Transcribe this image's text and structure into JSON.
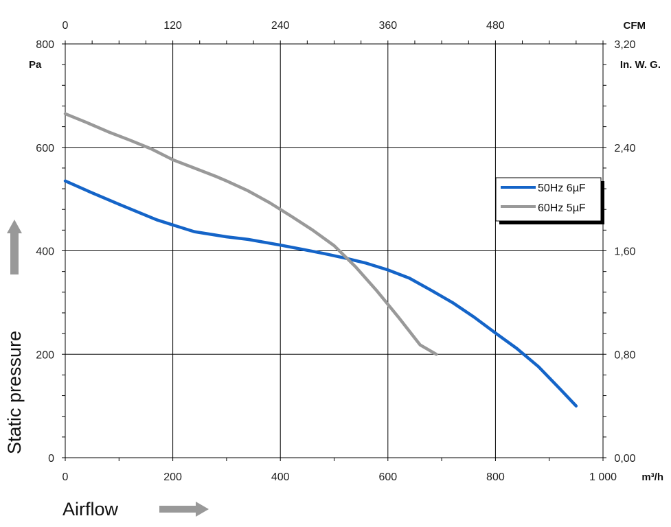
{
  "chart_data": {
    "type": "line",
    "xlabel": "Airflow",
    "ylabel": "Static pressure",
    "x_unit": "m³/h",
    "y_unit": "Pa",
    "x_top_unit": "CFM",
    "y_right_unit": "In. W. G.",
    "xlim": [
      0,
      1000
    ],
    "ylim": [
      0,
      800
    ],
    "x_ticks": [
      0,
      200,
      400,
      600,
      800,
      1000
    ],
    "x_tick_labels": [
      "0",
      "200",
      "400",
      "600",
      "800",
      "1 000"
    ],
    "y_ticks": [
      0,
      200,
      400,
      600,
      800
    ],
    "y_tick_labels": [
      "0",
      "200",
      "400",
      "600",
      "800"
    ],
    "x_top_tick_values": [
      0,
      120,
      240,
      360,
      480
    ],
    "x_top_tick_labels": [
      "0",
      "120",
      "240",
      "360",
      "480"
    ],
    "y_right_tick_values": [
      0,
      0.8,
      1.6,
      2.4,
      3.2
    ],
    "y_right_tick_labels": [
      "0,00",
      "0,80",
      "1,60",
      "2,40",
      "3,20"
    ],
    "grid": true,
    "legend_position": "right",
    "series": [
      {
        "name": "50Hz 6µF",
        "color": "#1464c8",
        "points": [
          [
            0,
            535
          ],
          [
            50,
            512
          ],
          [
            100,
            490
          ],
          [
            170,
            460
          ],
          [
            200,
            450
          ],
          [
            240,
            437
          ],
          [
            300,
            427
          ],
          [
            340,
            422
          ],
          [
            400,
            411
          ],
          [
            440,
            403
          ],
          [
            480,
            395
          ],
          [
            520,
            386
          ],
          [
            560,
            376
          ],
          [
            600,
            363
          ],
          [
            640,
            347
          ],
          [
            680,
            324
          ],
          [
            720,
            300
          ],
          [
            760,
            272
          ],
          [
            800,
            241
          ],
          [
            840,
            211
          ],
          [
            880,
            176
          ],
          [
            920,
            133
          ],
          [
            950,
            100
          ]
        ]
      },
      {
        "name": "60Hz 5µF",
        "color": "#999999",
        "points": [
          [
            0,
            665
          ],
          [
            40,
            648
          ],
          [
            80,
            630
          ],
          [
            120,
            614
          ],
          [
            160,
            597
          ],
          [
            200,
            576
          ],
          [
            240,
            560
          ],
          [
            280,
            544
          ],
          [
            300,
            535
          ],
          [
            340,
            516
          ],
          [
            380,
            493
          ],
          [
            420,
            467
          ],
          [
            460,
            440
          ],
          [
            500,
            410
          ],
          [
            540,
            369
          ],
          [
            580,
            322
          ],
          [
            620,
            271
          ],
          [
            660,
            218
          ],
          [
            690,
            200
          ]
        ]
      }
    ]
  }
}
